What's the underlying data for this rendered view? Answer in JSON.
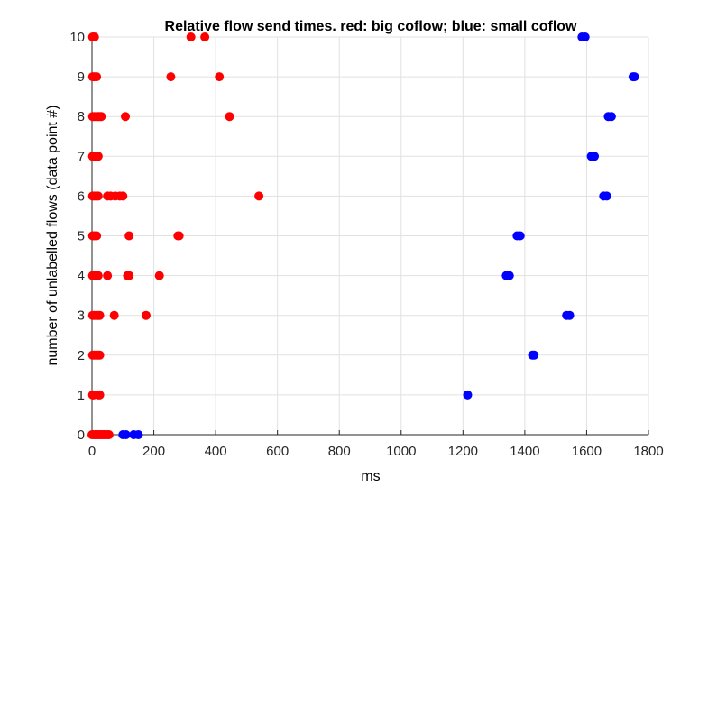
{
  "chart_data": {
    "type": "scatter",
    "title": "Relative flow send times. red: big coflow; blue: small coflow",
    "xlabel": "ms",
    "ylabel": "number of unlabelled flows (data point #)",
    "xlim": [
      0,
      1800
    ],
    "ylim": [
      0,
      10
    ],
    "xticks": [
      0,
      200,
      400,
      600,
      800,
      1000,
      1200,
      1400,
      1600,
      1800
    ],
    "yticks": [
      0,
      1,
      2,
      3,
      4,
      5,
      6,
      7,
      8,
      9,
      10
    ],
    "grid": true,
    "series": [
      {
        "color": "#ff0000",
        "points": [
          [
            0,
            0
          ],
          [
            5,
            0
          ],
          [
            10,
            0
          ],
          [
            15,
            0
          ],
          [
            20,
            0
          ],
          [
            25,
            0
          ],
          [
            30,
            0
          ],
          [
            35,
            0
          ],
          [
            40,
            0
          ],
          [
            45,
            0
          ],
          [
            50,
            0
          ],
          [
            55,
            0
          ],
          [
            2,
            1
          ],
          [
            5,
            1
          ],
          [
            20,
            1
          ],
          [
            25,
            1
          ],
          [
            2,
            2
          ],
          [
            8,
            2
          ],
          [
            15,
            2
          ],
          [
            20,
            2
          ],
          [
            25,
            2
          ],
          [
            2,
            3
          ],
          [
            8,
            3
          ],
          [
            15,
            3
          ],
          [
            20,
            3
          ],
          [
            25,
            3
          ],
          [
            72,
            3
          ],
          [
            175,
            3
          ],
          [
            2,
            4
          ],
          [
            8,
            4
          ],
          [
            15,
            4
          ],
          [
            20,
            4
          ],
          [
            50,
            4
          ],
          [
            115,
            4
          ],
          [
            120,
            4
          ],
          [
            218,
            4
          ],
          [
            2,
            5
          ],
          [
            8,
            5
          ],
          [
            15,
            5
          ],
          [
            120,
            5
          ],
          [
            278,
            5
          ],
          [
            282,
            5
          ],
          [
            2,
            6
          ],
          [
            8,
            6
          ],
          [
            15,
            6
          ],
          [
            20,
            6
          ],
          [
            50,
            6
          ],
          [
            60,
            6
          ],
          [
            75,
            6
          ],
          [
            90,
            6
          ],
          [
            100,
            6
          ],
          [
            540,
            6
          ],
          [
            2,
            7
          ],
          [
            8,
            7
          ],
          [
            15,
            7
          ],
          [
            20,
            7
          ],
          [
            2,
            8
          ],
          [
            8,
            8
          ],
          [
            15,
            8
          ],
          [
            20,
            8
          ],
          [
            25,
            8
          ],
          [
            30,
            8
          ],
          [
            108,
            8
          ],
          [
            445,
            8
          ],
          [
            2,
            9
          ],
          [
            8,
            9
          ],
          [
            15,
            9
          ],
          [
            255,
            9
          ],
          [
            412,
            9
          ],
          [
            2,
            10
          ],
          [
            8,
            10
          ],
          [
            320,
            10
          ],
          [
            365,
            10
          ]
        ]
      },
      {
        "color": "#0000ff",
        "points": [
          [
            100,
            0
          ],
          [
            110,
            0
          ],
          [
            135,
            0
          ],
          [
            150,
            0
          ],
          [
            1215,
            1
          ],
          [
            1425,
            2
          ],
          [
            1430,
            2
          ],
          [
            1535,
            3
          ],
          [
            1545,
            3
          ],
          [
            1340,
            4
          ],
          [
            1350,
            4
          ],
          [
            1375,
            5
          ],
          [
            1385,
            5
          ],
          [
            1655,
            6
          ],
          [
            1665,
            6
          ],
          [
            1615,
            7
          ],
          [
            1625,
            7
          ],
          [
            1670,
            8
          ],
          [
            1680,
            8
          ],
          [
            1750,
            9
          ],
          [
            1755,
            9
          ],
          [
            1585,
            10
          ],
          [
            1595,
            10
          ]
        ]
      }
    ]
  }
}
